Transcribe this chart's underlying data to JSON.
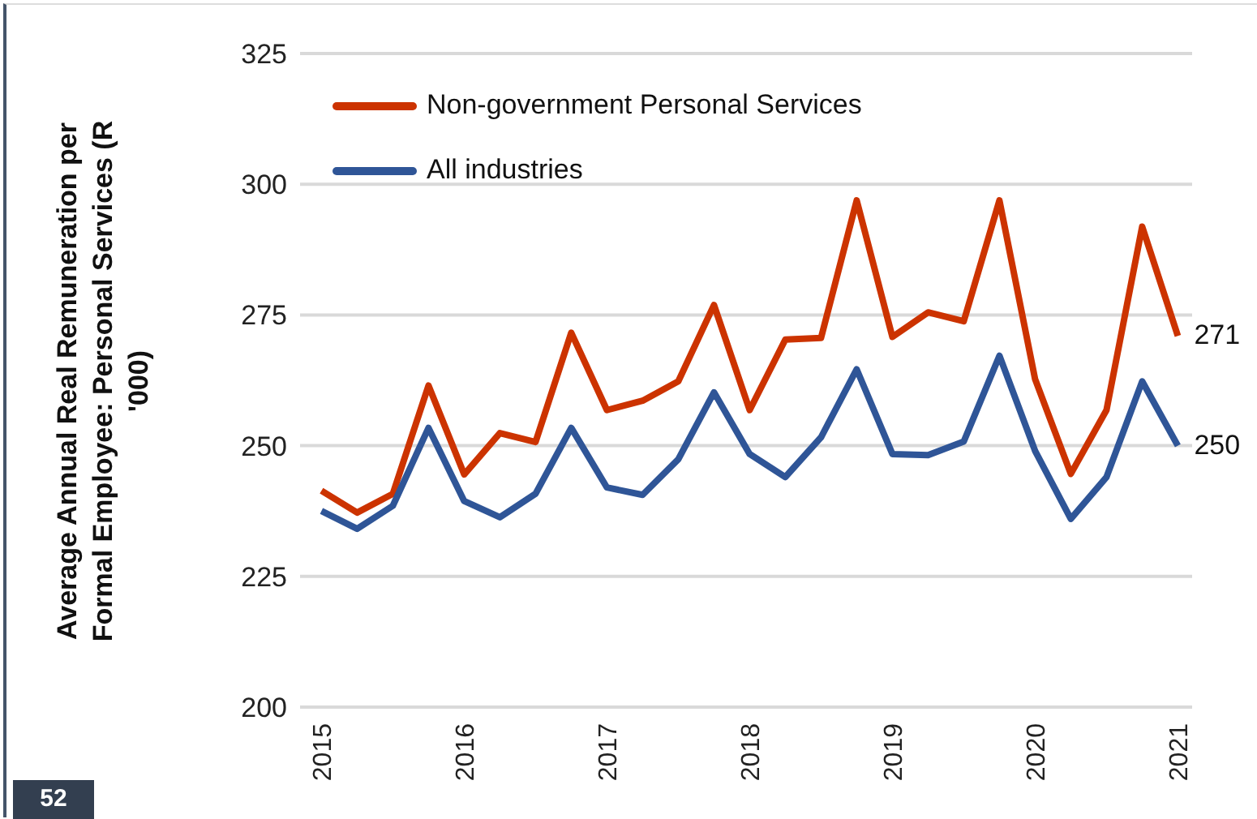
{
  "chart_data": {
    "type": "line",
    "ylabel": "Average Annual Real Remuneration per Formal Employee: Personal Services (R '000)",
    "categories": [
      "2015",
      null,
      null,
      null,
      "2016",
      null,
      null,
      null,
      "2017",
      null,
      null,
      null,
      "2018",
      null,
      null,
      null,
      "2019",
      null,
      null,
      null,
      "2020",
      null,
      null,
      null,
      "2021"
    ],
    "series": [
      {
        "name": "Non-government Personal Services",
        "color": "#cc3300",
        "values": [
          241.4,
          237.2,
          240.8,
          261.5,
          244.5,
          252.4,
          250.7,
          271.6,
          256.8,
          258.6,
          262.3,
          276.9,
          256.8,
          270.3,
          270.6,
          296.9,
          270.8,
          275.5,
          273.8,
          296.9,
          262.7,
          244.6,
          256.8,
          291.9,
          271.0
        ],
        "value_labels": [
          null,
          null,
          null,
          null,
          null,
          null,
          null,
          null,
          null,
          null,
          null,
          null,
          null,
          null,
          null,
          null,
          null,
          null,
          null,
          null,
          null,
          null,
          null,
          null,
          "271"
        ]
      },
      {
        "name": "All industries",
        "color": "#2f5597",
        "values": [
          237.5,
          234.1,
          238.5,
          253.4,
          239.4,
          236.3,
          240.8,
          253.4,
          242.0,
          240.6,
          247.4,
          260.2,
          248.4,
          244.0,
          251.6,
          264.6,
          248.4,
          248.2,
          250.8,
          267.2,
          249.0,
          236.0,
          244.0,
          262.3,
          250.0
        ],
        "value_labels": [
          null,
          null,
          null,
          null,
          null,
          null,
          null,
          null,
          null,
          null,
          null,
          null,
          null,
          null,
          null,
          null,
          null,
          null,
          null,
          null,
          null,
          null,
          null,
          null,
          "250"
        ]
      }
    ],
    "ylim": [
      200,
      325
    ],
    "yticks": [
      200,
      225,
      250,
      275,
      300,
      325
    ],
    "grid": "y",
    "legend": "top left",
    "marker": "none",
    "line_style": "solid",
    "annotations": [
      "52"
    ]
  }
}
